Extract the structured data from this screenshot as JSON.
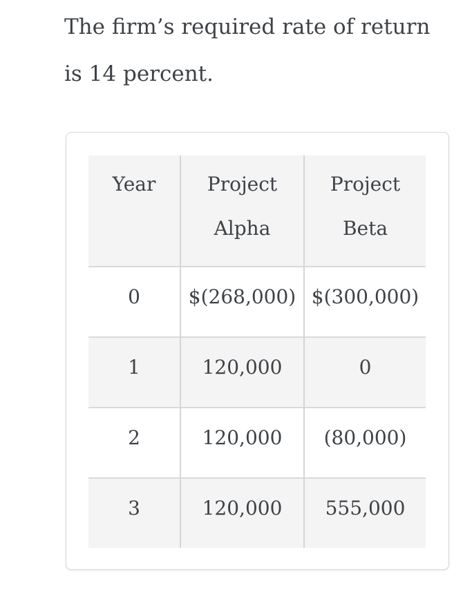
{
  "intro": {
    "text": "The firm’s required rate of return is 14 percent."
  },
  "table": {
    "columns": [
      "Year",
      "Project Alpha",
      "Project Beta"
    ],
    "rows": [
      [
        "0",
        "$(268,000)",
        "$(300,000)"
      ],
      [
        "1",
        "120,000",
        "0"
      ],
      [
        "2",
        "120,000",
        "(80,000)"
      ],
      [
        "3",
        "120,000",
        "555,000"
      ]
    ]
  },
  "colors": {
    "text": "#3e4247",
    "stripe_background": "#f4f4f4",
    "row_border": "#d9d9d9",
    "column_border": "#d5d5d5",
    "card_border": "#d5d5d5",
    "page_background": "#ffffff"
  }
}
